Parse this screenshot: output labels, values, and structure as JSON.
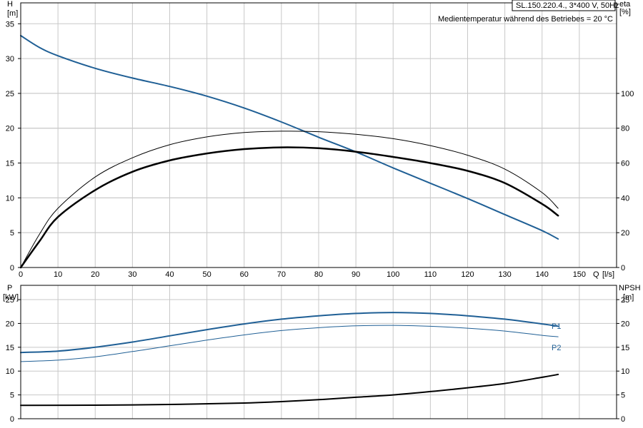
{
  "header": {
    "model": "SL.150.220.4., 3*400 V, 50Hz",
    "note": "Medientemperatur während des Betriebes = 20 °C"
  },
  "colors": {
    "blue": "#1f5f95",
    "black": "#000000",
    "grid": "#c8c8c8",
    "frame": "#000000"
  },
  "chart_data": [
    {
      "type": "line",
      "name": "head-efficiency",
      "x_axis": {
        "label": "Q",
        "unit": "[l/s]",
        "range": [
          0,
          160
        ],
        "ticks": [
          0,
          10,
          20,
          30,
          40,
          50,
          60,
          70,
          80,
          90,
          100,
          110,
          120,
          130,
          140,
          150
        ]
      },
      "y_left": {
        "label": "H",
        "unit": "[m]",
        "range": [
          0,
          38
        ],
        "ticks": [
          0,
          5,
          10,
          15,
          20,
          25,
          30,
          35
        ]
      },
      "y_right": {
        "label": "eta",
        "unit": "[%]",
        "range": [
          0,
          152
        ],
        "ticks": [
          0,
          20,
          40,
          60,
          80,
          100
        ]
      },
      "grid": true,
      "series": [
        {
          "role": "head",
          "axis": "left",
          "color": "blue",
          "width": 2,
          "x": [
            0,
            5,
            10,
            20,
            30,
            40,
            50,
            60,
            70,
            80,
            90,
            100,
            110,
            120,
            130,
            140,
            144.3
          ],
          "y": [
            33.3,
            31.6,
            30.4,
            28.6,
            27.2,
            26.0,
            24.6,
            22.9,
            20.9,
            18.7,
            16.6,
            14.3,
            12.1,
            9.9,
            7.6,
            5.3,
            4.1
          ]
        },
        {
          "role": "eta-hydraulic",
          "axis": "right",
          "color": "black",
          "width": 1,
          "x": [
            0,
            5,
            10,
            20,
            30,
            40,
            50,
            60,
            70,
            80,
            90,
            100,
            110,
            120,
            130,
            140,
            144.3
          ],
          "y": [
            0,
            19,
            34,
            52,
            63,
            70.5,
            75,
            77.5,
            78.3,
            78,
            76.5,
            74,
            70,
            64.5,
            56.5,
            43,
            34
          ]
        },
        {
          "role": "eta-total",
          "axis": "right",
          "color": "black",
          "width": 2.5,
          "x": [
            0,
            5,
            10,
            20,
            30,
            40,
            50,
            60,
            70,
            80,
            90,
            100,
            110,
            120,
            130,
            140,
            144.3
          ],
          "y": [
            0,
            15,
            29,
            44.5,
            55,
            61.5,
            65.5,
            68,
            69,
            68.5,
            66.5,
            63.5,
            60,
            55.5,
            48.5,
            36.5,
            29.8
          ]
        }
      ]
    },
    {
      "type": "line",
      "name": "power-npsh",
      "x_axis": {
        "range": [
          0,
          160
        ]
      },
      "y_left": {
        "label": "P",
        "unit": "[kW]",
        "range": [
          0,
          28
        ],
        "ticks": [
          0,
          5,
          10,
          15,
          20,
          25
        ]
      },
      "y_right": {
        "label": "NPSH",
        "unit": "[m]",
        "range": [
          0,
          28
        ],
        "ticks": [
          0,
          5,
          10,
          15,
          20,
          25
        ]
      },
      "grid": true,
      "series": [
        {
          "name": "P1",
          "axis": "left",
          "color": "blue",
          "width": 2,
          "x": [
            0,
            10,
            20,
            30,
            40,
            50,
            60,
            70,
            80,
            90,
            100,
            110,
            120,
            130,
            140,
            144.3
          ],
          "y": [
            13.9,
            14.2,
            15.0,
            16.1,
            17.4,
            18.7,
            19.9,
            20.9,
            21.6,
            22.1,
            22.3,
            22.1,
            21.6,
            20.9,
            19.9,
            19.4
          ]
        },
        {
          "name": "P2",
          "axis": "left",
          "color": "blue",
          "width": 1,
          "x": [
            0,
            10,
            20,
            30,
            40,
            50,
            60,
            70,
            80,
            90,
            100,
            110,
            120,
            130,
            140,
            144.3
          ],
          "y": [
            12.0,
            12.3,
            13.0,
            14.1,
            15.3,
            16.5,
            17.6,
            18.5,
            19.1,
            19.5,
            19.6,
            19.4,
            19.0,
            18.4,
            17.5,
            17.2
          ]
        },
        {
          "role": "npsh",
          "axis": "right",
          "color": "black",
          "width": 2,
          "x": [
            0,
            20,
            40,
            60,
            70,
            80,
            90,
            100,
            110,
            120,
            130,
            140,
            144.3
          ],
          "y": [
            2.8,
            2.85,
            3.0,
            3.3,
            3.6,
            4.0,
            4.5,
            5.0,
            5.7,
            6.5,
            7.4,
            8.7,
            9.3
          ]
        }
      ]
    }
  ]
}
